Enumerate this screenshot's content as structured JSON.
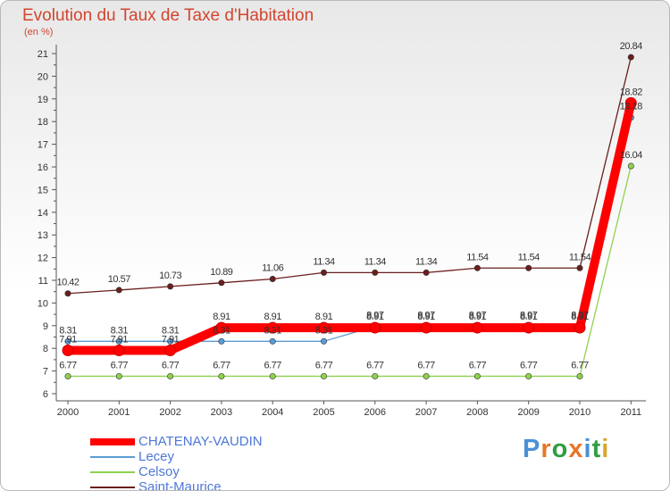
{
  "title": "Evolution du Taux de Taxe d'Habitation",
  "unit_label": "(en %)",
  "logo_text": "Proxiti",
  "chart_data": {
    "type": "line",
    "title": "Evolution du Taux de Taxe d'Habitation",
    "ylabel": "(en %)",
    "xlabel": "",
    "x": [
      "2000",
      "2001",
      "2002",
      "2003",
      "2004",
      "2005",
      "2006",
      "2007",
      "2008",
      "2009",
      "2010",
      "2011"
    ],
    "ylim": [
      6,
      21
    ],
    "yticks": [
      6,
      7,
      8,
      9,
      10,
      11,
      12,
      13,
      14,
      15,
      16,
      17,
      18,
      19,
      20,
      21
    ],
    "grid": false,
    "legend_position": "bottom-left",
    "series": [
      {
        "name": "CHATENAY-VAUDIN",
        "color": "#ff0000",
        "values": [
          7.91,
          7.91,
          7.91,
          8.91,
          8.91,
          8.91,
          8.91,
          8.91,
          8.91,
          8.91,
          8.91,
          18.82
        ],
        "labels": [
          "7.91",
          "7.91",
          "7.91",
          "8.91",
          "8.91",
          "8.91",
          "8.91",
          "8.91",
          "8.91",
          "8.91",
          "8.91",
          "18.82"
        ]
      },
      {
        "name": "Lecey",
        "color": "#5b9bd5",
        "values": [
          8.31,
          8.31,
          8.31,
          8.31,
          8.31,
          8.31,
          8.97,
          8.97,
          8.97,
          8.97,
          8.97,
          18.18
        ],
        "labels": [
          "8.31",
          "8.31",
          "8.31",
          "8.31",
          "8.31",
          "8.31",
          "8.97",
          "8.97",
          "8.97",
          "8.97",
          "8.97",
          "18.18"
        ]
      },
      {
        "name": "Celsoy",
        "color": "#8fd14f",
        "values": [
          6.77,
          6.77,
          6.77,
          6.77,
          6.77,
          6.77,
          6.77,
          6.77,
          6.77,
          6.77,
          6.77,
          16.04
        ],
        "labels": [
          "6.77",
          "6.77",
          "6.77",
          "6.77",
          "6.77",
          "6.77",
          "6.77",
          "6.77",
          "6.77",
          "6.77",
          "6.77",
          "16.04"
        ]
      },
      {
        "name": "Saint-Maurice",
        "color": "#6b1e1e",
        "values": [
          10.42,
          10.57,
          10.73,
          10.89,
          11.06,
          11.34,
          11.34,
          11.34,
          11.54,
          11.54,
          11.54,
          20.84
        ],
        "labels": [
          "10.42",
          "10.57",
          "10.73",
          "10.89",
          "11.06",
          "11.34",
          "11.34",
          "11.34",
          "11.54",
          "11.54",
          "11.54",
          "20.84"
        ]
      }
    ]
  }
}
